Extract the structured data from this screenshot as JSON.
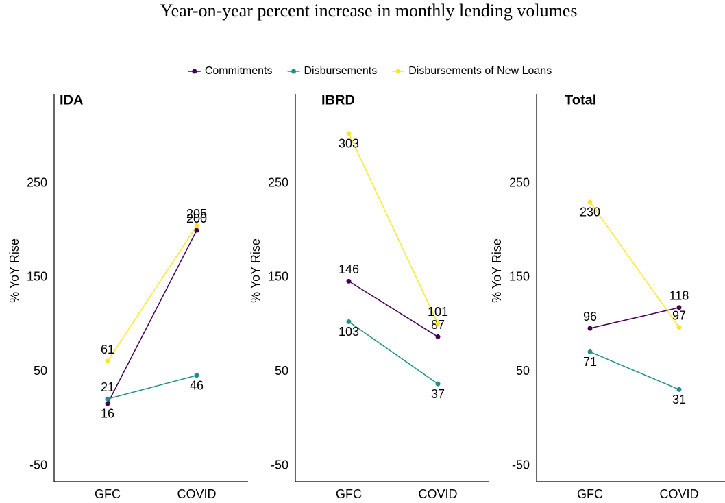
{
  "title": "Year-on-year percent increase in monthly lending volumes",
  "chart_data": [
    {
      "type": "line",
      "title": "IDA",
      "y_label": "% YoY Rise",
      "categories": [
        "GFC",
        "COVID"
      ],
      "series": [
        {
          "name": "Commitments",
          "color": "#440154",
          "values": [
            16,
            200
          ]
        },
        {
          "name": "Disbursements",
          "color": "#21908C",
          "values": [
            21,
            46
          ]
        },
        {
          "name": "Disbursements of New Loans",
          "color": "#FDE725",
          "values": [
            61,
            205
          ]
        }
      ],
      "ylim": [
        -67,
        345
      ],
      "yticks": [
        -50,
        50,
        150,
        250
      ]
    },
    {
      "type": "line",
      "title": "IBRD",
      "y_label": "% YoY Rise",
      "categories": [
        "GFC",
        "COVID"
      ],
      "series": [
        {
          "name": "Commitments",
          "color": "#440154",
          "values": [
            146,
            87
          ]
        },
        {
          "name": "Disbursements",
          "color": "#21908C",
          "values": [
            103,
            37
          ]
        },
        {
          "name": "Disbursements of New Loans",
          "color": "#FDE725",
          "values": [
            303,
            101
          ]
        }
      ],
      "ylim": [
        -67,
        345
      ],
      "yticks": [
        -50,
        50,
        150,
        250
      ]
    },
    {
      "type": "line",
      "title": "Total",
      "y_label": "% YoY Rise",
      "categories": [
        "GFC",
        "COVID"
      ],
      "series": [
        {
          "name": "Commitments",
          "color": "#440154",
          "values": [
            96,
            118
          ]
        },
        {
          "name": "Disbursements",
          "color": "#21908C",
          "values": [
            71,
            31
          ]
        },
        {
          "name": "Disbursements of New Loans",
          "color": "#FDE725",
          "values": [
            230,
            97
          ]
        }
      ],
      "ylim": [
        -67,
        345
      ],
      "yticks": [
        -50,
        50,
        150,
        250
      ]
    }
  ]
}
